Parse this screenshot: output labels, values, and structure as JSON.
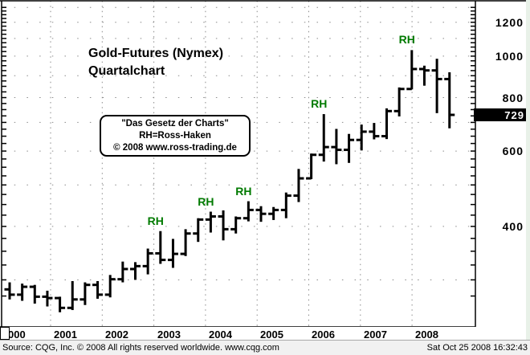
{
  "title": {
    "line1": "Gold-Futures (Nymex)",
    "line2": "Quartalchart"
  },
  "info_box": {
    "line1": "\"Das Gesetz der Charts\"",
    "line2": "RH=Ross-Haken",
    "line3": "© 2008 www.ross-trading.de"
  },
  "status_bar": {
    "source": "Source: CQG, Inc. © 2008 All rights reserved worldwide. www.cqg.com",
    "timestamp": "Sat Oct 25 2008 16:32:43"
  },
  "price_box": {
    "value": "729"
  },
  "colors": {
    "bar": "#000000",
    "rh_label": "#007a00",
    "grid": "#8a8a8a",
    "frame": "#000000",
    "price_box_bg": "#000000",
    "price_box_text": "#ffffff",
    "right_edge_strip": "#e8f1e8",
    "status_bg": "#f1f1f1"
  },
  "chart_data": {
    "type": "ohlc_bar",
    "title": "Gold-Futures (Nymex) Quartalchart",
    "instrument": "Gold-Futures (Nymex)",
    "timeframe": "quarterly",
    "y_scale": "log",
    "ylabel": "",
    "xlabel": "",
    "y_axis_tick_labels": [
      1200,
      1000,
      800,
      600,
      400
    ],
    "y_gridlines": [
      300,
      400,
      500,
      600,
      700,
      800,
      900,
      1000,
      1100,
      1200,
      1300
    ],
    "x_axis_labels": [
      "000",
      "2001",
      "2002",
      "2003",
      "2004",
      "2005",
      "2006",
      "2007",
      "2008"
    ],
    "current_price": 729,
    "quarters": [
      "2000Q1",
      "2000Q2",
      "2000Q3",
      "2000Q4",
      "2001Q1",
      "2001Q2",
      "2001Q3",
      "2001Q4",
      "2002Q1",
      "2002Q2",
      "2002Q3",
      "2002Q4",
      "2003Q1",
      "2003Q2",
      "2003Q3",
      "2003Q4",
      "2004Q1",
      "2004Q2",
      "2004Q3",
      "2004Q4",
      "2005Q1",
      "2005Q2",
      "2005Q3",
      "2005Q4",
      "2006Q1",
      "2006Q2",
      "2006Q3",
      "2006Q4",
      "2007Q1",
      "2007Q2",
      "2007Q3",
      "2007Q4",
      "2008Q1",
      "2008Q2",
      "2008Q3",
      "2008Q4"
    ],
    "ohlc": [
      [
        285,
        296,
        270,
        277
      ],
      [
        277,
        294,
        268,
        289
      ],
      [
        289,
        292,
        264,
        274
      ],
      [
        274,
        283,
        260,
        272
      ],
      [
        272,
        274,
        252,
        258
      ],
      [
        258,
        298,
        255,
        270
      ],
      [
        270,
        296,
        262,
        292
      ],
      [
        292,
        298,
        271,
        277
      ],
      [
        277,
        308,
        273,
        301
      ],
      [
        301,
        331,
        296,
        318
      ],
      [
        318,
        330,
        300,
        323
      ],
      [
        323,
        355,
        309,
        346
      ],
      [
        346,
        390,
        327,
        334
      ],
      [
        334,
        374,
        320,
        345
      ],
      [
        345,
        394,
        341,
        385
      ],
      [
        385,
        418,
        368,
        415
      ],
      [
        415,
        433,
        387,
        422
      ],
      [
        422,
        436,
        371,
        394
      ],
      [
        394,
        422,
        385,
        418
      ],
      [
        418,
        458,
        411,
        437
      ],
      [
        437,
        446,
        410,
        428
      ],
      [
        428,
        444,
        414,
        437
      ],
      [
        437,
        480,
        418,
        472
      ],
      [
        472,
        545,
        456,
        518
      ],
      [
        518,
        592,
        516,
        588
      ],
      [
        588,
        732,
        567,
        613
      ],
      [
        613,
        676,
        559,
        604
      ],
      [
        604,
        658,
        563,
        637
      ],
      [
        637,
        692,
        602,
        666
      ],
      [
        666,
        698,
        639,
        650
      ],
      [
        650,
        755,
        640,
        744
      ],
      [
        744,
        845,
        723,
        838
      ],
      [
        838,
        1033,
        836,
        933
      ],
      [
        933,
        950,
        853,
        926
      ],
      [
        926,
        986,
        736,
        884
      ],
      [
        884,
        917,
        678,
        729
      ]
    ],
    "annotations": [
      {
        "label": "RH",
        "quarter": "2003Q1",
        "bar_index": 12
      },
      {
        "label": "RH",
        "quarter": "2004Q1",
        "bar_index": 16
      },
      {
        "label": "RH",
        "quarter": "2004Q4",
        "bar_index": 19
      },
      {
        "label": "RH",
        "quarter": "2006Q2",
        "bar_index": 25
      },
      {
        "label": "RH",
        "quarter": "2008Q1",
        "bar_index": 32
      }
    ]
  }
}
